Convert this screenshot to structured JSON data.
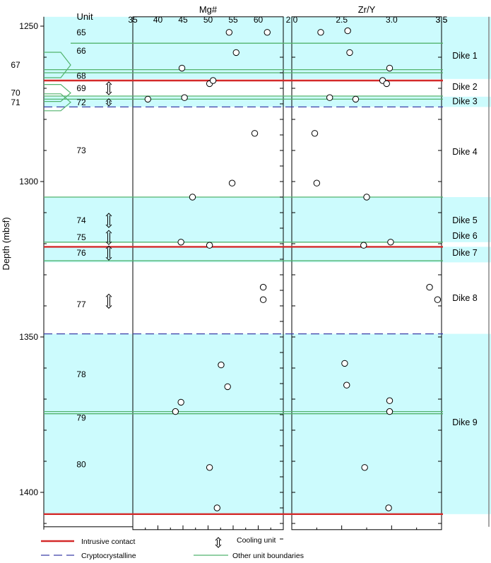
{
  "chart_data": {
    "type": "scatter",
    "ylabel": "Depth (mbsf)",
    "ylim": [
      1247,
      1412
    ],
    "yticks": [
      1250,
      1300,
      1350,
      1400
    ],
    "unit_header": "Unit",
    "panels": [
      {
        "title": "Mg#",
        "xlim": [
          35,
          65
        ],
        "xticks": [
          35,
          40,
          45,
          50,
          55,
          60
        ],
        "points": [
          {
            "x": 54.2,
            "y": 1252
          },
          {
            "x": 61.8,
            "y": 1252
          },
          {
            "x": 55.6,
            "y": 1258.5
          },
          {
            "x": 44.8,
            "y": 1263.5
          },
          {
            "x": 50.3,
            "y": 1268.5
          },
          {
            "x": 51.0,
            "y": 1267.5
          },
          {
            "x": 38.0,
            "y": 1273.5
          },
          {
            "x": 45.3,
            "y": 1273
          },
          {
            "x": 59.3,
            "y": 1284.5
          },
          {
            "x": 54.8,
            "y": 1300.5
          },
          {
            "x": 46.9,
            "y": 1305
          },
          {
            "x": 44.6,
            "y": 1319.5
          },
          {
            "x": 50.3,
            "y": 1320.5
          },
          {
            "x": 61.0,
            "y": 1334
          },
          {
            "x": 61.0,
            "y": 1338
          },
          {
            "x": 52.6,
            "y": 1359
          },
          {
            "x": 53.9,
            "y": 1366
          },
          {
            "x": 44.6,
            "y": 1371
          },
          {
            "x": 43.5,
            "y": 1374
          },
          {
            "x": 50.3,
            "y": 1392
          },
          {
            "x": 51.8,
            "y": 1405
          }
        ]
      },
      {
        "title": "Zr/Y",
        "xlim": [
          2.0,
          3.5
        ],
        "xticks": [
          2.0,
          2.5,
          3.0,
          3.5
        ],
        "points": [
          {
            "x": 2.29,
            "y": 1252
          },
          {
            "x": 2.56,
            "y": 1251.5
          },
          {
            "x": 2.58,
            "y": 1258.5
          },
          {
            "x": 2.98,
            "y": 1263.5
          },
          {
            "x": 2.91,
            "y": 1267.5
          },
          {
            "x": 2.95,
            "y": 1268.5
          },
          {
            "x": 2.38,
            "y": 1273
          },
          {
            "x": 2.64,
            "y": 1273.5
          },
          {
            "x": 2.23,
            "y": 1284.5
          },
          {
            "x": 2.25,
            "y": 1300.5
          },
          {
            "x": 2.75,
            "y": 1305
          },
          {
            "x": 2.72,
            "y": 1320.5
          },
          {
            "x": 2.99,
            "y": 1319.5
          },
          {
            "x": 3.38,
            "y": 1334
          },
          {
            "x": 3.46,
            "y": 1338
          },
          {
            "x": 2.53,
            "y": 1358.5
          },
          {
            "x": 2.55,
            "y": 1365.5
          },
          {
            "x": 2.98,
            "y": 1370.5
          },
          {
            "x": 2.98,
            "y": 1374
          },
          {
            "x": 2.73,
            "y": 1392
          },
          {
            "x": 2.97,
            "y": 1405
          }
        ]
      }
    ],
    "dike_zones": [
      {
        "label": "Dike 1",
        "top": 1247,
        "bottom": 1267,
        "shaded": true
      },
      {
        "label": "Dike 2",
        "top": 1267,
        "bottom": 1272.7,
        "shaded": false
      },
      {
        "label": "Dike 3",
        "top": 1272.7,
        "bottom": 1276,
        "shaded": true
      },
      {
        "label": "Dike 4",
        "top": 1276,
        "bottom": 1305,
        "shaded": false
      },
      {
        "label": "Dike 5",
        "top": 1305,
        "bottom": 1319.5,
        "shaded": true
      },
      {
        "label": "Dike 6",
        "top": 1319.5,
        "bottom": 1321,
        "shaded": false
      },
      {
        "label": "Dike 7",
        "top": 1321,
        "bottom": 1326,
        "shaded": true
      },
      {
        "label": "Dike 8",
        "top": 1326,
        "bottom": 1349,
        "shaded": false
      },
      {
        "label": "Dike 9",
        "top": 1349,
        "bottom": 1407,
        "shaded": true
      }
    ],
    "dike_label_depths": [
      1259.5,
      1269.5,
      1274.2,
      1290.5,
      1312.5,
      1317.5,
      1323,
      1337.5,
      1377.5
    ],
    "units": [
      {
        "label": "65",
        "depth": 1252
      },
      {
        "label": "66",
        "depth": 1258
      },
      {
        "label": "67",
        "depth": 1262.5,
        "offset": true
      },
      {
        "label": "68",
        "depth": 1266
      },
      {
        "label": "69",
        "depth": 1270
      },
      {
        "label": "70",
        "depth": 1271.5,
        "offset": true
      },
      {
        "label": "71",
        "depth": 1274.5,
        "offset": true
      },
      {
        "label": "72",
        "depth": 1274.5
      },
      {
        "label": "73",
        "depth": 1290
      },
      {
        "label": "74",
        "depth": 1312.5
      },
      {
        "label": "75",
        "depth": 1318
      },
      {
        "label": "76",
        "depth": 1323
      },
      {
        "label": "77",
        "depth": 1339.5
      },
      {
        "label": "78",
        "depth": 1362
      },
      {
        "label": "79",
        "depth": 1376
      },
      {
        "label": "80",
        "depth": 1391
      }
    ],
    "boundaries": [
      {
        "type": "other",
        "depth": 1255.5
      },
      {
        "type": "other",
        "depth": 1264
      },
      {
        "type": "other",
        "depth": 1265
      },
      {
        "type": "intrusive",
        "depth": 1267.5
      },
      {
        "type": "other",
        "depth": 1272.5
      },
      {
        "type": "other",
        "depth": 1273.5
      },
      {
        "type": "crypto",
        "depth": 1276
      },
      {
        "type": "other",
        "depth": 1305
      },
      {
        "type": "other",
        "depth": 1319.5
      },
      {
        "type": "intrusive",
        "depth": 1321
      },
      {
        "type": "other",
        "depth": 1325.5
      },
      {
        "type": "crypto",
        "depth": 1349
      },
      {
        "type": "other",
        "depth": 1374
      },
      {
        "type": "other",
        "depth": 1374.7
      },
      {
        "type": "intrusive",
        "depth": 1407
      }
    ],
    "cooling_units": [
      {
        "depth": 1270,
        "size": "small"
      },
      {
        "depth": 1274.5,
        "size": "tiny"
      },
      {
        "depth": 1312.5,
        "size": "normal"
      },
      {
        "depth": 1318,
        "size": "normal"
      },
      {
        "depth": 1323,
        "size": "normal"
      },
      {
        "depth": 1338.5,
        "size": "normal"
      }
    ],
    "legend": [
      {
        "key": "intrusive",
        "label": "Intrusive contact"
      },
      {
        "key": "crypto",
        "label": "Cryptocrystalline"
      },
      {
        "key": "cooling",
        "label": "Cooling unit"
      },
      {
        "key": "other",
        "label": "Other unit boundaries"
      }
    ],
    "colors": {
      "shade": "#ccfbfd",
      "intrusive": "#d42a2a",
      "crypto": "#3a3ea8",
      "other": "#52b36d",
      "panel_border": "#000000"
    }
  }
}
